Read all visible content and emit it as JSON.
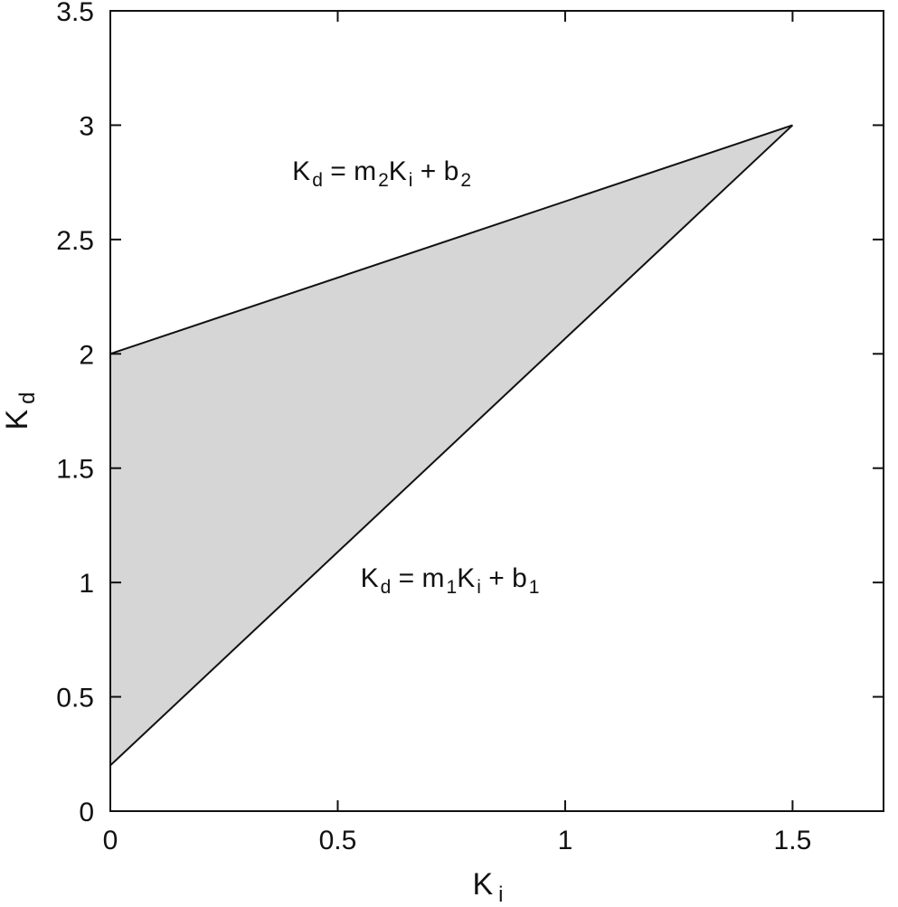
{
  "chart_data": {
    "type": "area",
    "xlabel": {
      "main": "K",
      "sub": "i"
    },
    "ylabel": {
      "main": "K",
      "sub": "d"
    },
    "xlim": [
      0,
      1.7
    ],
    "ylim": [
      0,
      3.5
    ],
    "x_ticks": [
      "0",
      "0.5",
      "1",
      "1.5"
    ],
    "x_tick_values": [
      0,
      0.5,
      1,
      1.5
    ],
    "y_ticks": [
      "0",
      "0.5",
      "1",
      "1.5",
      "2",
      "2.5",
      "3",
      "3.5"
    ],
    "y_tick_values": [
      0,
      0.5,
      1,
      1.5,
      2,
      2.5,
      3,
      3.5
    ],
    "grid": false,
    "series": [
      {
        "x": [
          0,
          1.5
        ],
        "y": [
          2.0,
          3.0
        ]
      },
      {
        "x": [
          0,
          1.5
        ],
        "y": [
          0.2,
          3.0
        ]
      }
    ],
    "region": {
      "x": [
        0,
        1.5,
        0
      ],
      "y": [
        2.0,
        3.0,
        0.2
      ],
      "color": "#d6d6d6"
    },
    "annotations": [
      {
        "x": 0.4,
        "y": 2.76,
        "parts": [
          "K",
          "d",
          " = m",
          "2",
          "K",
          "i",
          " + b",
          "2"
        ]
      },
      {
        "x": 0.55,
        "y": 0.98,
        "parts": [
          "K",
          "d",
          " = m",
          "1",
          "K",
          "i",
          " + b",
          "1"
        ]
      }
    ]
  }
}
